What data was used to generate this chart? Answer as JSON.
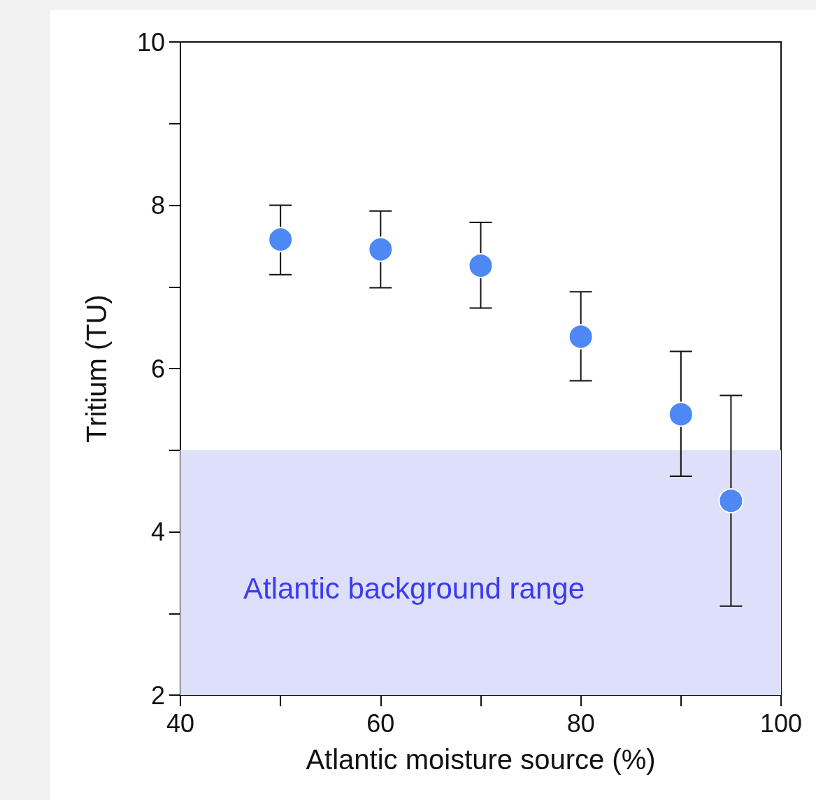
{
  "chart_data": {
    "type": "scatter",
    "xlabel": "Atlantic moisture source (%)",
    "ylabel": "Tritium (TU)",
    "x": [
      50,
      60,
      70,
      80,
      90,
      95
    ],
    "values": [
      7.58,
      7.46,
      7.26,
      6.39,
      5.44,
      4.38
    ],
    "color": "#4d88f5",
    "errors": [
      [
        7.15,
        8.0
      ],
      [
        6.99,
        7.93
      ],
      [
        6.74,
        7.79
      ],
      [
        5.85,
        6.94
      ],
      [
        4.68,
        6.21
      ],
      [
        3.09,
        5.67
      ]
    ],
    "xlim": [
      40,
      100
    ],
    "xticks": [
      40,
      {
        "value": 50,
        "label": null
      },
      60,
      {
        "value": 70,
        "label": null
      },
      80,
      {
        "value": 90,
        "label": null
      },
      100
    ],
    "ylim": [
      2,
      10
    ],
    "yticks": [
      2,
      {
        "value": 3,
        "label": null
      },
      4,
      {
        "value": 5,
        "label": null
      },
      6,
      {
        "value": 7,
        "label": null
      },
      8,
      {
        "value": 9,
        "label": null
      },
      10
    ],
    "bands": [
      {
        "axis": "y",
        "from": 2,
        "to": 5,
        "label": "Atlantic background range",
        "color": "#dedff8"
      }
    ],
    "marker": "circle",
    "grid": false
  }
}
